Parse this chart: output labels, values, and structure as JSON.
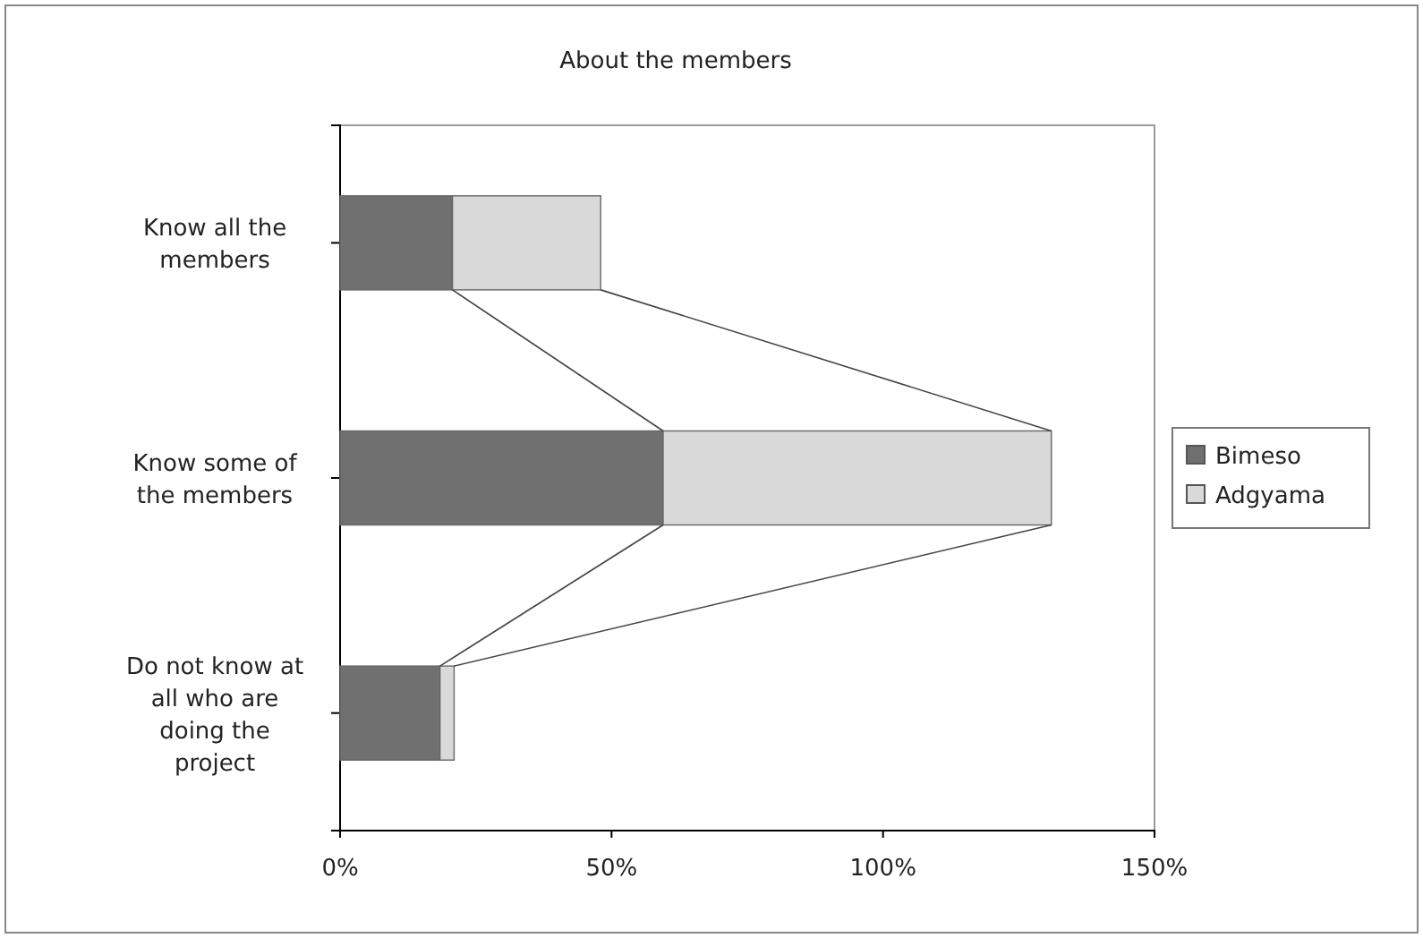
{
  "chart_data": {
    "type": "bar",
    "orientation": "horizontal",
    "stacked": true,
    "title": "About the members",
    "categories": [
      "Know all the members",
      "Know some of the members",
      "Do not know at all who are doing the project"
    ],
    "series": [
      {
        "name": "Bimeso",
        "color": "#707070",
        "values": [
          20.7,
          59.5,
          18.4
        ]
      },
      {
        "name": "Adgyama",
        "color": "#d9d9d9",
        "values": [
          27.3,
          71.5,
          2.6
        ]
      }
    ],
    "xlim": [
      0,
      150
    ],
    "xticks": [
      {
        "value": 0,
        "label": "0%"
      },
      {
        "value": 50,
        "label": "50%"
      },
      {
        "value": 100,
        "label": "100%"
      },
      {
        "value": 150,
        "label": "150%"
      }
    ],
    "legend": "right",
    "grid": false
  }
}
